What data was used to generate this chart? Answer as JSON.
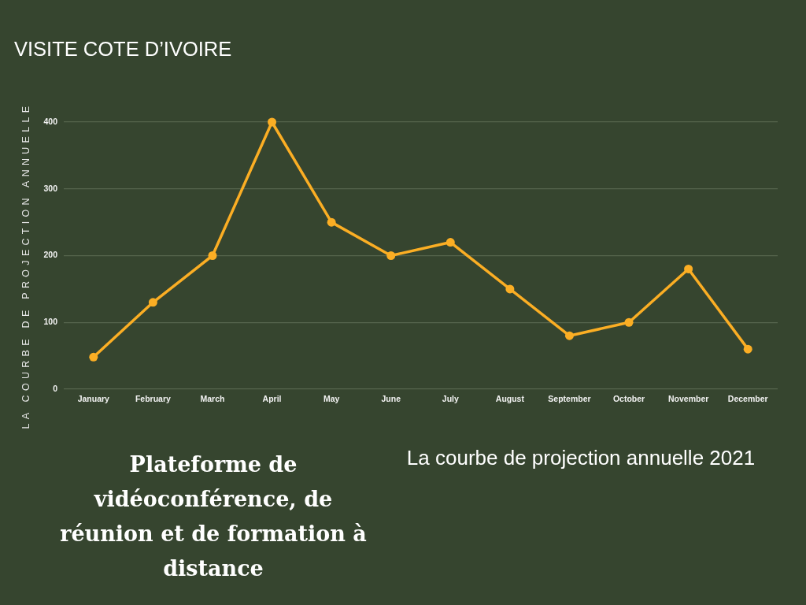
{
  "chart_data": {
    "type": "line",
    "title": "VISITE COTE D’IVOIRE",
    "ylabel": "LA COURBE DE PROJECTION ANNUELLE",
    "categories": [
      "January",
      "February",
      "March",
      "April",
      "May",
      "June",
      "July",
      "August",
      "September",
      "October",
      "November",
      "December"
    ],
    "series": [
      {
        "color": "#fbae24",
        "values": [
          48,
          130,
          200,
          400,
          250,
          200,
          220,
          150,
          80,
          100,
          180,
          60
        ]
      }
    ],
    "ylim": [
      0,
      400
    ],
    "yticks": [
      0,
      100,
      200,
      300,
      400
    ],
    "grid": "y",
    "marker": "circle",
    "line_style": "solid",
    "annotations": [
      "Plateforme de vidéoconférence, de réunion et de formation à distance",
      "La courbe de projection annuelle 2021"
    ]
  }
}
